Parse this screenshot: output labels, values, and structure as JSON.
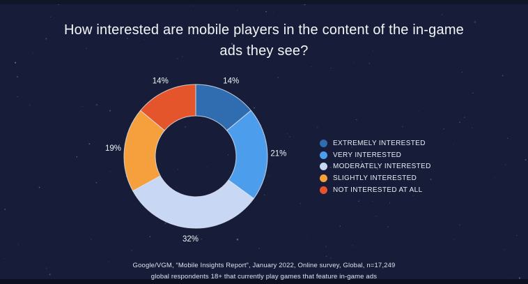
{
  "title": "How interested are mobile players in the content of the in-game\nads they see?",
  "colors": {
    "background": "#171d38",
    "slice_stroke": "#dde3ef",
    "label_text": "#f0f3f8",
    "star": "#aeb6cf"
  },
  "chart_data": {
    "type": "pie",
    "donut": true,
    "title": "How interested are mobile players in the content of the in-game ads they see?",
    "categories": [
      "Extremely interested",
      "Very interested",
      "Moderately interested",
      "Slightly interested",
      "Not interested at all"
    ],
    "values": [
      14,
      21,
      32,
      19,
      14
    ],
    "unit": "%",
    "colors": [
      "#2f6cb0",
      "#4d9ded",
      "#c7d7f4",
      "#f5a03c",
      "#e5552c"
    ],
    "start_angle_deg": 0,
    "direction": "clockwise",
    "legend_position": "right"
  },
  "legend": {
    "items": [
      {
        "label": "EXTREMELY INTERESTED",
        "color": "#2f6cb0"
      },
      {
        "label": "VERY INTERESTED",
        "color": "#4d9ded"
      },
      {
        "label": "MODERATELY INTERESTED",
        "color": "#c7d7f4"
      },
      {
        "label": "SLIGHTLY INTERESTED",
        "color": "#f5a03c"
      },
      {
        "label": "NOT INTERESTED AT ALL",
        "color": "#e5552c"
      }
    ]
  },
  "source": {
    "line1": "Google/VGM, “Mobile Insights Report”, January 2022, Online survey, Global, n=17,249",
    "line2": "global respondents 18+ that currently play games that feature in-game ads"
  }
}
